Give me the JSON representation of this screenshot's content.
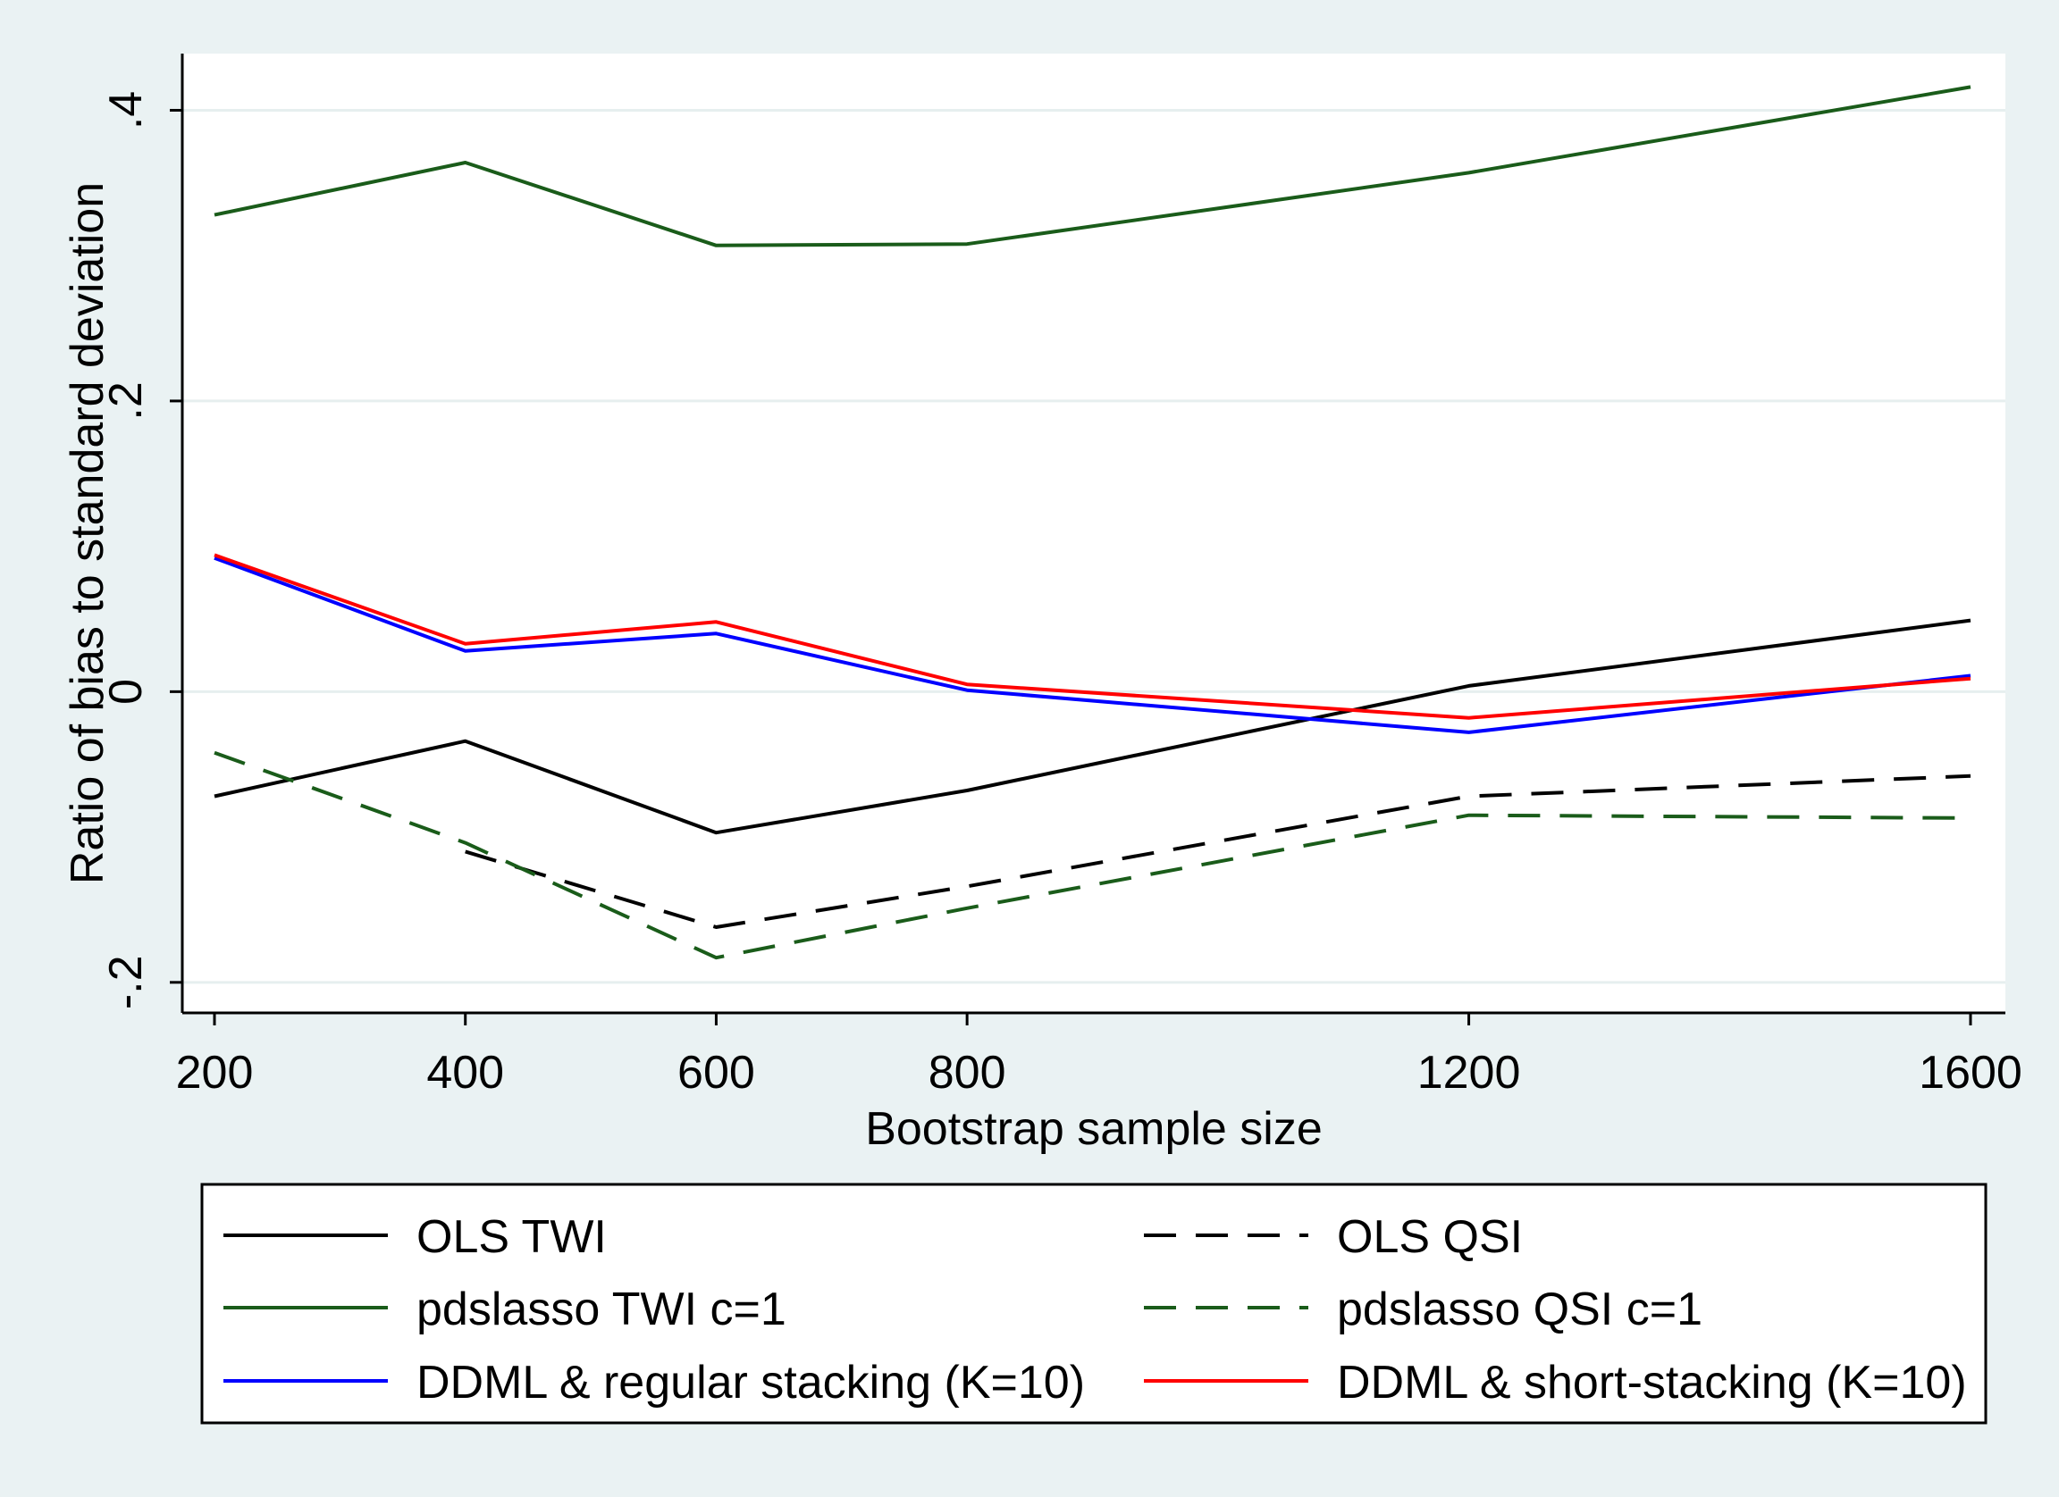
{
  "chart_data": {
    "type": "line",
    "xlabel": "Bootstrap sample size",
    "ylabel": "Ratio of bias to standard deviation",
    "x": [
      200,
      400,
      600,
      800,
      1200,
      1600
    ],
    "x_tick_labels": [
      "200",
      "400",
      "600",
      "800",
      "1200",
      "1600"
    ],
    "y_ticks": [
      -0.2,
      0,
      0.2,
      0.4
    ],
    "y_tick_labels": [
      "-.2",
      "0",
      ".2",
      ".4"
    ],
    "xlim": [
      200,
      1600
    ],
    "ylim": [
      -0.221,
      0.439
    ],
    "grid": "horizontal",
    "legend_position": "bottom",
    "series": [
      {
        "name": "OLS TWI",
        "color": "#000000",
        "dash": "solid",
        "values": [
          -0.072,
          -0.034,
          -0.097,
          -0.068,
          0.004,
          0.049
        ]
      },
      {
        "name": "OLS QSI",
        "color": "#000000",
        "dash": "dashed",
        "values": [
          null,
          -0.11,
          -0.162,
          -0.134,
          -0.072,
          -0.058
        ]
      },
      {
        "name": "pdslasso TWI c=1",
        "color": "#1a5c1a",
        "dash": "solid",
        "values": [
          0.328,
          0.364,
          0.307,
          0.308,
          0.357,
          0.416
        ]
      },
      {
        "name": "pdslasso QSI c=1",
        "color": "#1a5c1a",
        "dash": "dashed",
        "values": [
          -0.042,
          -0.104,
          -0.183,
          -0.149,
          -0.085,
          -0.087
        ]
      },
      {
        "name": "DDML & regular stacking (K=10)",
        "color": "#0000ff",
        "dash": "solid",
        "values": [
          0.092,
          0.028,
          0.04,
          0.001,
          -0.028,
          0.011
        ]
      },
      {
        "name": "DDML & short-stacking (K=10)",
        "color": "#ff0000",
        "dash": "solid",
        "values": [
          0.094,
          0.033,
          0.048,
          0.005,
          -0.018,
          0.009
        ]
      }
    ]
  }
}
